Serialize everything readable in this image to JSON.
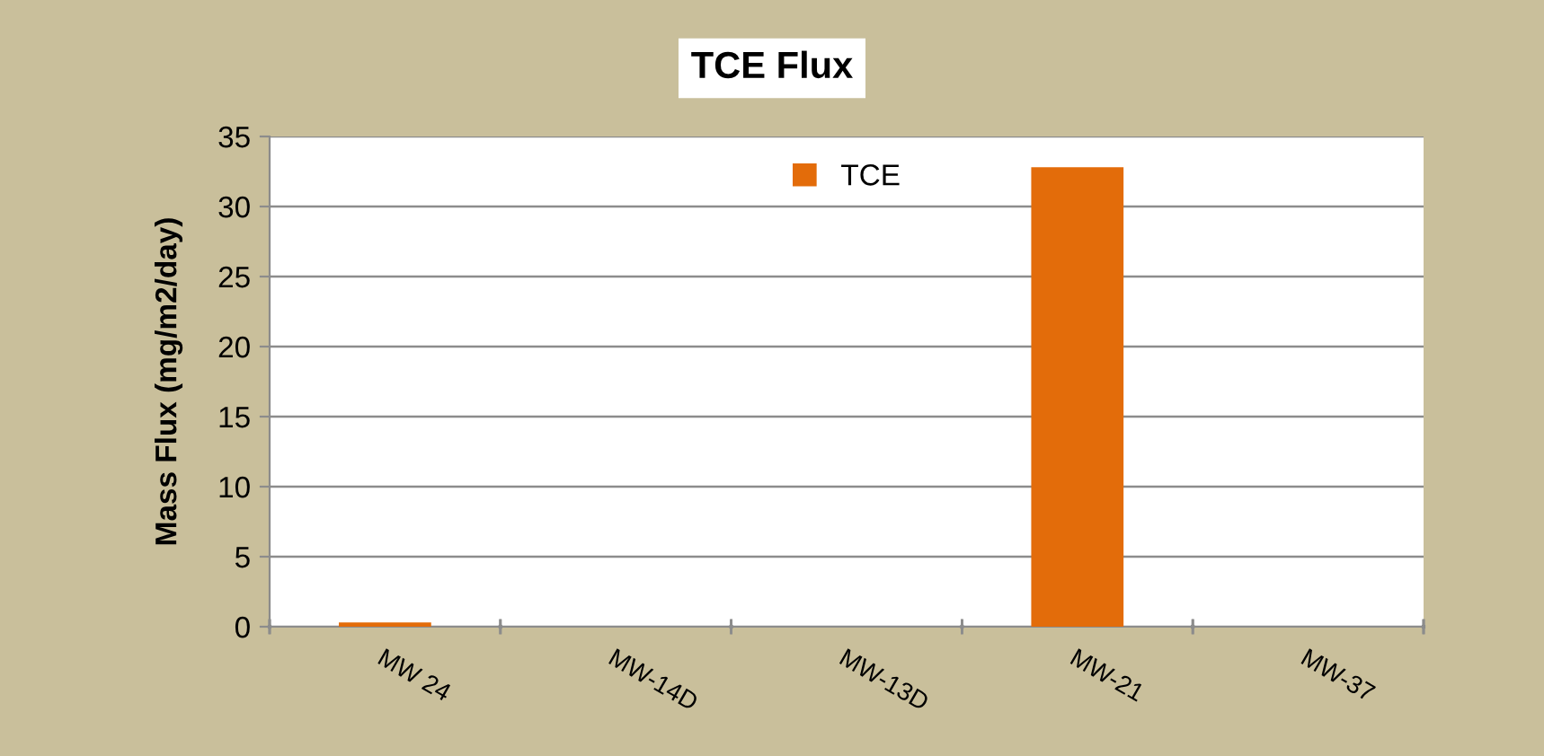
{
  "chart_data": {
    "type": "bar",
    "title": "TCE Flux",
    "ylabel": "Mass Flux (mg/m2/day)",
    "categories": [
      "MW 24",
      "MW-14D",
      "MW-13D",
      "MW-21",
      "MW-37"
    ],
    "series": [
      {
        "name": "TCE",
        "color": "#e36c0a",
        "values": [
          0.3,
          0,
          0,
          32.8,
          0
        ]
      }
    ],
    "ylim": [
      0,
      35
    ],
    "yticks": [
      0,
      5,
      10,
      15,
      20,
      25,
      30,
      35
    ],
    "grid": "y",
    "legend": "top"
  }
}
